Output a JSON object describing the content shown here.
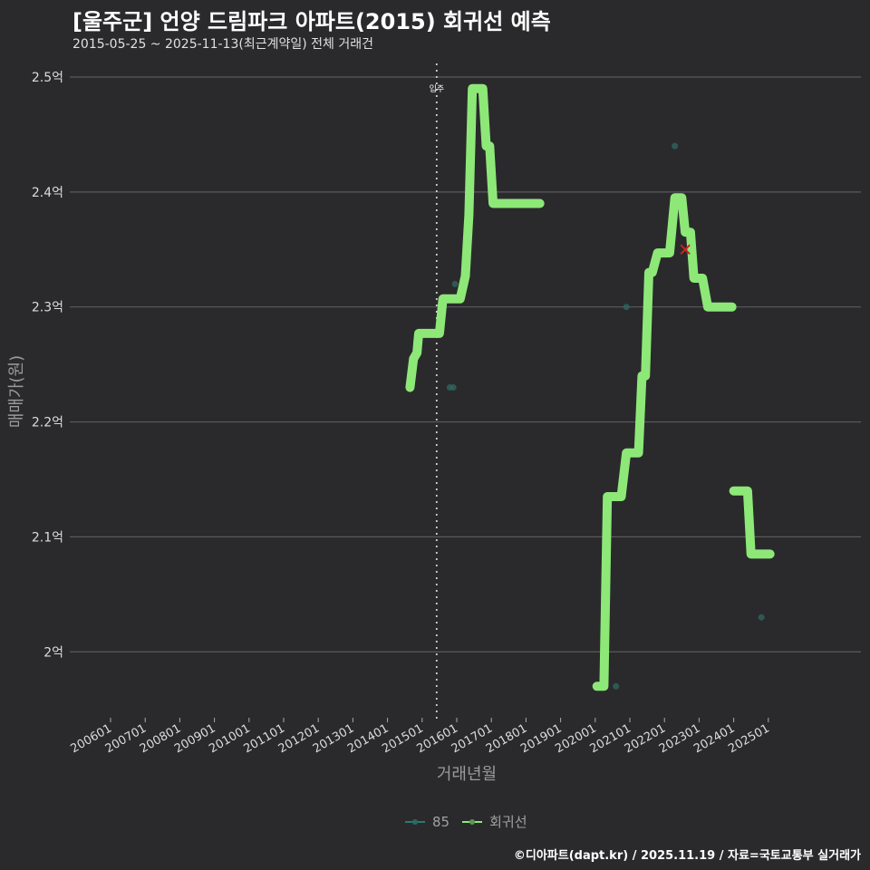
{
  "header": {
    "title": "[울주군] 언양 드림파크 아파트(2015) 회귀선 예측",
    "subtitle": "2015-05-25 ~ 2025-11-13(최근계약일) 전체 거래건"
  },
  "legend": {
    "items": [
      {
        "label": "85",
        "color": "#2a7a70"
      },
      {
        "label": "회귀선",
        "color": "#8de878"
      }
    ]
  },
  "caption": "©디아파트(dapt.kr) / 2025.11.19 / 자료=국토교통부 실거래가",
  "annotation": {
    "label": "입주",
    "x": "201505"
  },
  "chart_data": {
    "type": "line",
    "title": "[울주군] 언양 드림파크 아파트(2015) 회귀선 예측",
    "subtitle": "2015-05-25 ~ 2025-11-13(최근계약일) 전체 거래건",
    "xlabel": "거래년월",
    "ylabel": "매매가(원)",
    "ylim": [
      1.95,
      2.52
    ],
    "yticks": [
      "2억",
      "2.1억",
      "2.2억",
      "2.3억",
      "2.4억",
      "2.5억"
    ],
    "ytick_values": [
      2.0,
      2.1,
      2.2,
      2.3,
      2.4,
      2.5
    ],
    "xticks": [
      "200601",
      "200701",
      "200801",
      "200901",
      "201001",
      "201101",
      "201201",
      "201301",
      "201401",
      "201501",
      "201601",
      "201701",
      "201801",
      "201901",
      "202001",
      "202101",
      "202201",
      "202301",
      "202401",
      "202501"
    ],
    "grid": true,
    "legend_position": "bottom",
    "vline": {
      "x": 2015.42,
      "label": "입주"
    },
    "series": [
      {
        "name": "85",
        "kind": "scatter",
        "points": [
          {
            "x": 2015.8,
            "y": 2.23
          },
          {
            "x": 2015.9,
            "y": 2.23
          },
          {
            "x": 2015.95,
            "y": 2.32
          },
          {
            "x": 2016.5,
            "y": 2.49
          },
          {
            "x": 2020.6,
            "y": 1.97
          },
          {
            "x": 2020.9,
            "y": 2.3
          },
          {
            "x": 2022.3,
            "y": 2.44
          },
          {
            "x": 2024.3,
            "y": 2.14
          },
          {
            "x": 2024.8,
            "y": 2.03
          }
        ]
      },
      {
        "name": "회귀선",
        "kind": "line",
        "segments": [
          [
            {
              "x": 2014.65,
              "y": 2.23
            },
            {
              "x": 2014.75,
              "y": 2.255
            },
            {
              "x": 2014.85,
              "y": 2.26
            },
            {
              "x": 2014.9,
              "y": 2.277
            },
            {
              "x": 2015.5,
              "y": 2.277
            },
            {
              "x": 2015.6,
              "y": 2.307
            },
            {
              "x": 2016.1,
              "y": 2.307
            },
            {
              "x": 2016.25,
              "y": 2.327
            },
            {
              "x": 2016.35,
              "y": 2.38
            },
            {
              "x": 2016.45,
              "y": 2.49
            },
            {
              "x": 2016.75,
              "y": 2.49
            },
            {
              "x": 2016.85,
              "y": 2.44
            },
            {
              "x": 2016.95,
              "y": 2.44
            },
            {
              "x": 2017.05,
              "y": 2.39
            },
            {
              "x": 2018.4,
              "y": 2.39
            }
          ],
          [
            {
              "x": 2020.05,
              "y": 1.97
            },
            {
              "x": 2020.25,
              "y": 1.97
            },
            {
              "x": 2020.35,
              "y": 2.135
            },
            {
              "x": 2020.75,
              "y": 2.135
            },
            {
              "x": 2020.9,
              "y": 2.173
            },
            {
              "x": 2021.25,
              "y": 2.173
            },
            {
              "x": 2021.35,
              "y": 2.24
            },
            {
              "x": 2021.45,
              "y": 2.24
            },
            {
              "x": 2021.55,
              "y": 2.33
            },
            {
              "x": 2021.65,
              "y": 2.33
            },
            {
              "x": 2021.8,
              "y": 2.347
            },
            {
              "x": 2022.15,
              "y": 2.347
            },
            {
              "x": 2022.3,
              "y": 2.395
            },
            {
              "x": 2022.5,
              "y": 2.395
            },
            {
              "x": 2022.6,
              "y": 2.365
            },
            {
              "x": 2022.75,
              "y": 2.365
            },
            {
              "x": 2022.85,
              "y": 2.325
            },
            {
              "x": 2023.1,
              "y": 2.325
            },
            {
              "x": 2023.25,
              "y": 2.3
            },
            {
              "x": 2023.95,
              "y": 2.3
            }
          ],
          [
            {
              "x": 2024.0,
              "y": 2.14
            },
            {
              "x": 2024.4,
              "y": 2.14
            },
            {
              "x": 2024.5,
              "y": 2.085
            },
            {
              "x": 2025.05,
              "y": 2.085
            }
          ]
        ]
      }
    ],
    "marker": {
      "x": 2022.6,
      "y": 2.35,
      "symbol": "x",
      "color": "#cc2222"
    }
  }
}
